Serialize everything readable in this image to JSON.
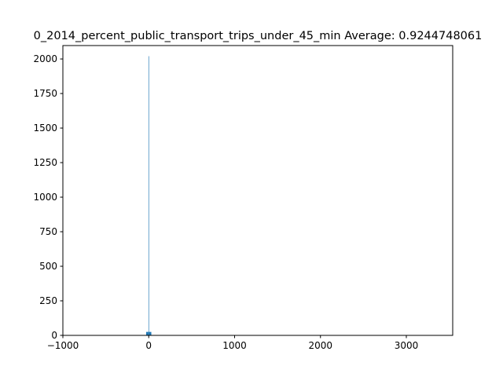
{
  "chart_data": {
    "type": "histogram",
    "title": "0_2014_percent_public_transport_trips_under_45_min  Average: 0.9244748061",
    "bins": [
      -30,
      -3,
      3,
      30
    ],
    "counts": [
      25,
      2020,
      25
    ],
    "color": "#1f77b4",
    "xlim": [
      -1000,
      3540
    ],
    "ylim": [
      0,
      2097
    ],
    "xticks": [
      {
        "value": -1000,
        "label": "−1000"
      },
      0,
      1000,
      2000,
      3000
    ],
    "yticks": [
      0,
      250,
      500,
      750,
      1000,
      1250,
      1500,
      1750,
      2000
    ]
  }
}
